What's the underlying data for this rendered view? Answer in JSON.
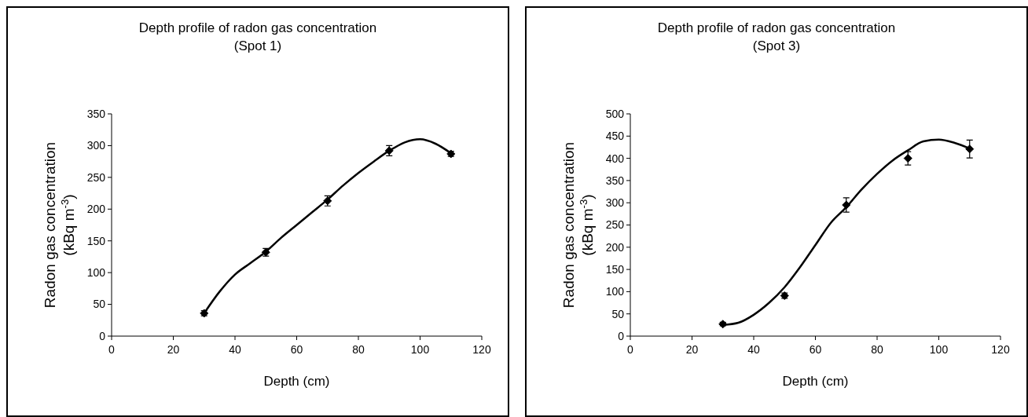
{
  "chart_data": [
    {
      "type": "scatter",
      "title": "Depth profile of radon gas concentration",
      "subtitle": "(Spot 1)",
      "xlabel": "Depth (cm)",
      "ylabel": "Radon gas concentration\n(kBq m$^{-3}$)",
      "xlim": [
        0,
        120
      ],
      "ylim": [
        0,
        350
      ],
      "xticks": [
        0,
        20,
        40,
        60,
        80,
        100,
        120
      ],
      "yticks": [
        0,
        50,
        100,
        150,
        200,
        250,
        300,
        350
      ],
      "grid": false,
      "marker": "diamond",
      "x": [
        30,
        50,
        70,
        90,
        110
      ],
      "series": [
        {
          "color": "#000000",
          "values": [
            36,
            132,
            213,
            292,
            287
          ],
          "errors": [
            4,
            6,
            8,
            8,
            4
          ]
        },
        {
          "type": "line",
          "color": "#000000",
          "marker": "none",
          "line_style": "solid",
          "x": [
            30,
            35,
            40,
            45,
            50,
            55,
            60,
            65,
            70,
            75,
            80,
            85,
            90,
            95,
            100,
            105,
            110
          ],
          "values": [
            36,
            70,
            97,
            115,
            133,
            155,
            175,
            195,
            215,
            237,
            257,
            275,
            292,
            305,
            310,
            303,
            288
          ]
        }
      ]
    },
    {
      "type": "scatter",
      "title": "Depth profile of radon gas concentration",
      "subtitle": "(Spot 3)",
      "xlabel": "Depth (cm)",
      "ylabel": "Radon gas concentration\n(kBq m$^{-3}$)",
      "xlim": [
        0,
        120
      ],
      "ylim": [
        0,
        500
      ],
      "xticks": [
        0,
        20,
        40,
        60,
        80,
        100,
        120
      ],
      "yticks": [
        0,
        50,
        100,
        150,
        200,
        250,
        300,
        350,
        400,
        450,
        500
      ],
      "grid": false,
      "marker": "diamond",
      "x": [
        30,
        50,
        70,
        90,
        110
      ],
      "series": [
        {
          "color": "#000000",
          "values": [
            27,
            91,
            295,
            400,
            421
          ],
          "errors": [
            4,
            6,
            16,
            15,
            20
          ]
        },
        {
          "type": "line",
          "color": "#000000",
          "marker": "none",
          "line_style": "solid",
          "x": [
            30,
            35,
            40,
            45,
            50,
            55,
            60,
            65,
            70,
            75,
            80,
            85,
            90,
            95,
            100,
            105,
            110
          ],
          "values": [
            25,
            30,
            48,
            75,
            110,
            155,
            205,
            255,
            290,
            330,
            365,
            395,
            418,
            438,
            442,
            435,
            422
          ]
        }
      ]
    }
  ]
}
